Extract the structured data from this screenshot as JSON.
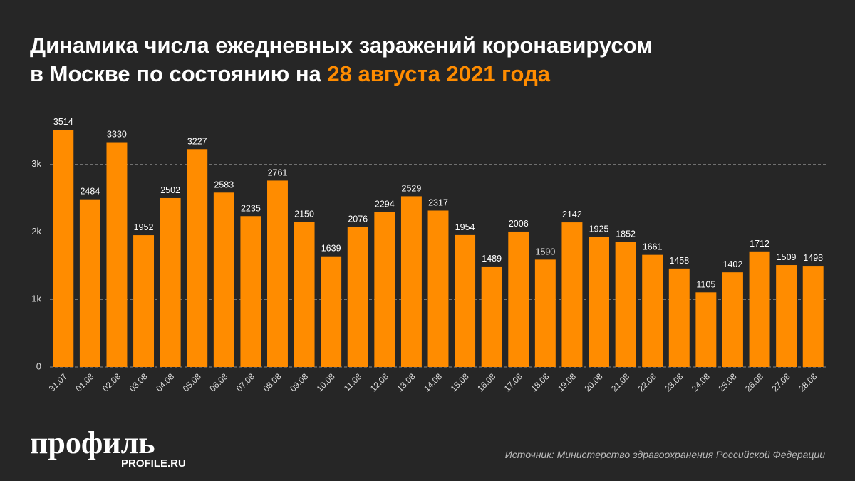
{
  "chart_data": {
    "type": "bar",
    "title": "Динамика числа ежедневных заражений коронавирусом",
    "title_line2": "в Москве по состоянию на",
    "title_date": "28 августа 2021 года",
    "categories": [
      "31.07",
      "01.08",
      "02.08",
      "03.08",
      "04.08",
      "05.08",
      "06.08",
      "07.08",
      "08.08",
      "09.08",
      "10.08",
      "11.08",
      "12.08",
      "13.08",
      "14.08",
      "15.08",
      "16.08",
      "17.08",
      "18.08",
      "19.08",
      "20.08",
      "21.08",
      "22.08",
      "23.08",
      "24.08",
      "25.08",
      "26.08",
      "27.08",
      "28.08"
    ],
    "values": [
      3514,
      2484,
      3330,
      1952,
      2502,
      3227,
      2583,
      2235,
      2761,
      2150,
      1639,
      2076,
      2294,
      2529,
      2317,
      1954,
      1489,
      2006,
      1590,
      2142,
      1925,
      1852,
      1661,
      1458,
      1105,
      1402,
      1712,
      1509,
      1498
    ],
    "color": "#ff8c00",
    "ylim": [
      0,
      3800
    ],
    "yticks": [
      0,
      {
        "value": 1000,
        "label": "1k"
      },
      {
        "value": 2000,
        "label": "2k"
      },
      {
        "value": 3000,
        "label": "3k"
      }
    ],
    "grid": true,
    "logo": "профиль",
    "logo_url": "PROFILE.RU",
    "source": "Источник: Министерство здравоохранения Российской Федерации"
  }
}
